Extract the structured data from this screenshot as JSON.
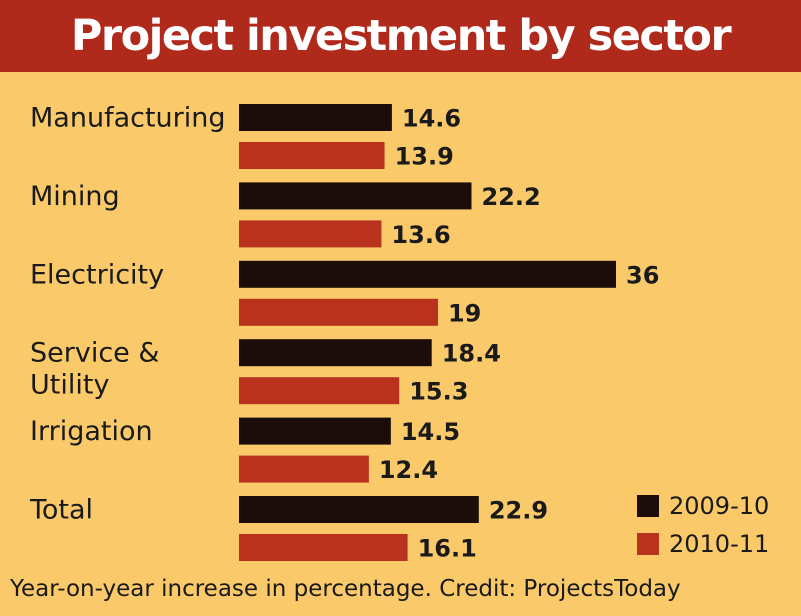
{
  "title": "Project investment by sector",
  "footer": "Year-on-year increase in percentage. Credit: ProjectsToday",
  "colors": {
    "background": "#f9c96a",
    "title_bar": "#b02a1c",
    "series_2009": "#1c0d0a",
    "series_2010": "#b8321d"
  },
  "chart_data": {
    "type": "bar",
    "orientation": "horizontal",
    "categories": [
      [
        "Manufacturing"
      ],
      [
        "Mining"
      ],
      [
        "Electricity"
      ],
      [
        "Service &",
        "Utility"
      ],
      [
        "Irrigation"
      ],
      [
        "Total"
      ]
    ],
    "series": [
      {
        "name": "2009-10",
        "values": [
          14.6,
          22.2,
          36,
          18.4,
          14.5,
          22.9
        ],
        "labels": [
          "14.6",
          "22.2",
          "36",
          "18.4",
          "14.5",
          "22.9"
        ]
      },
      {
        "name": "2010-11",
        "values": [
          13.9,
          13.6,
          19,
          15.3,
          12.4,
          16.1
        ],
        "labels": [
          "13.9",
          "13.6",
          "19",
          "15.3",
          "12.4",
          "16.1"
        ]
      }
    ],
    "legend": "bottom-right",
    "axes_visible": false,
    "grid": false
  }
}
